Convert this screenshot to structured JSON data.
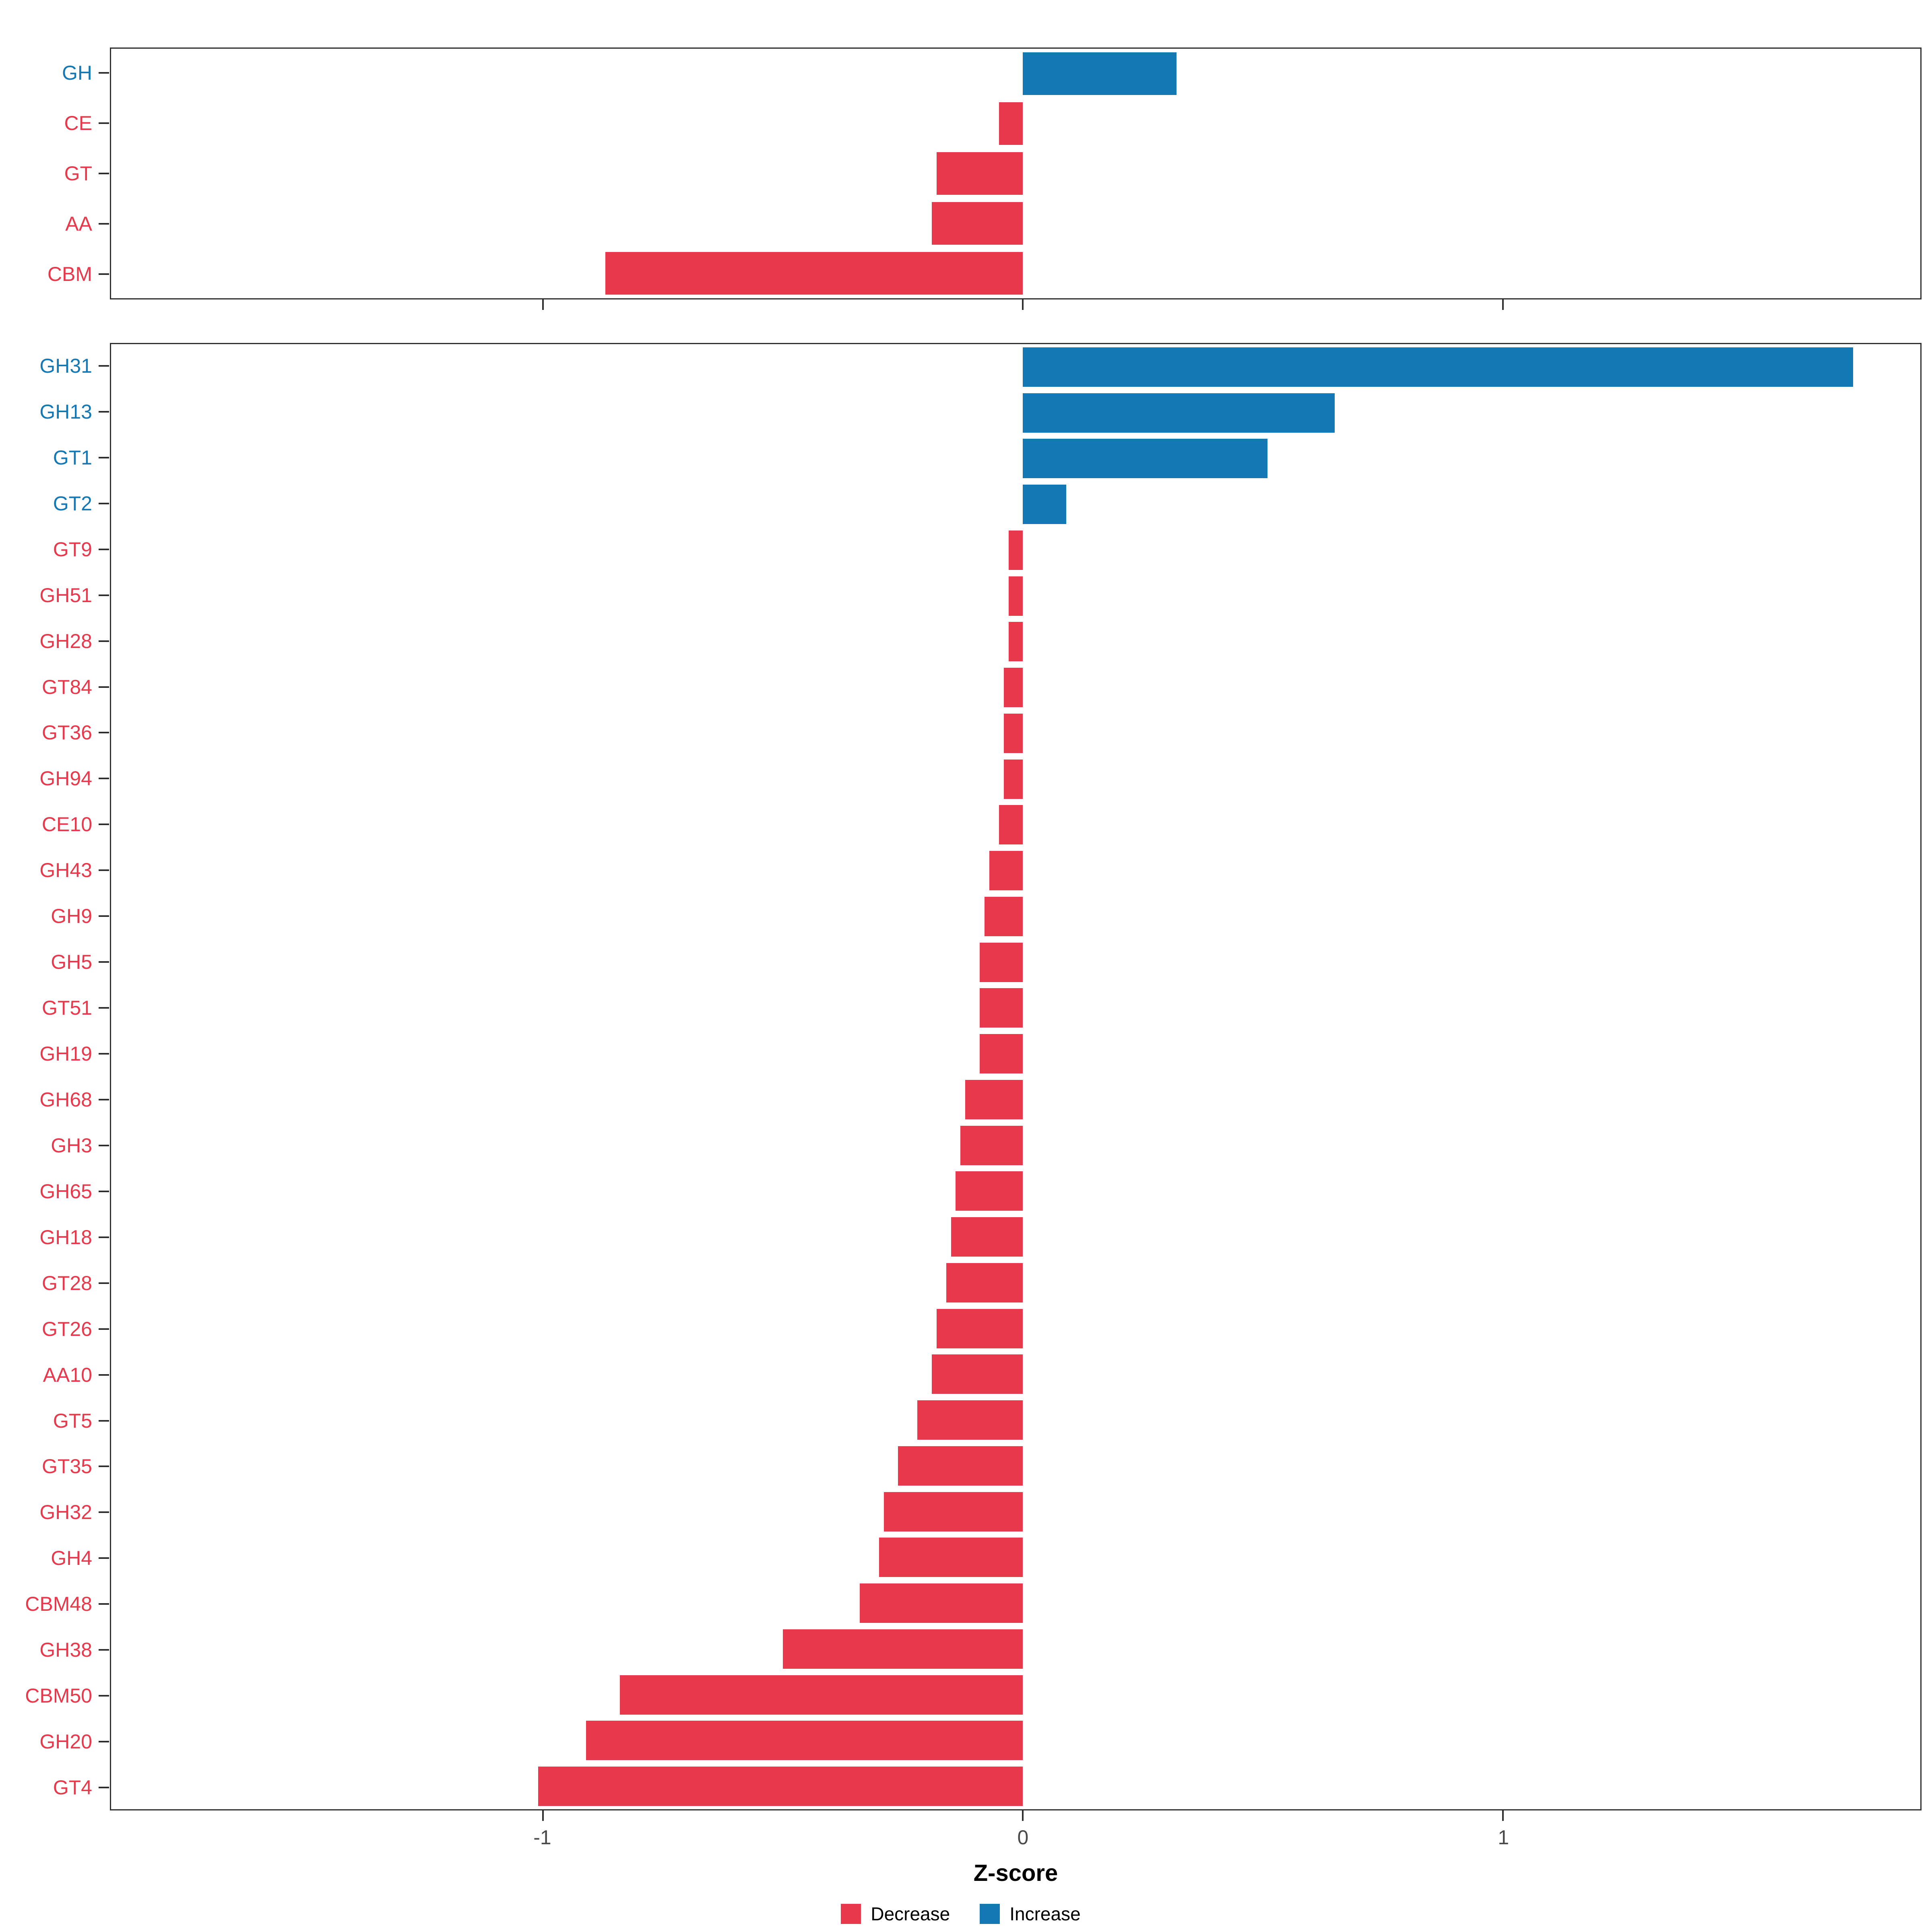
{
  "axis": {
    "xlabel": "Z-score",
    "ticks": [
      -1,
      0,
      1
    ],
    "xmin": -1.9,
    "xmax": 1.87
  },
  "colors": {
    "decrease": "#E8384B",
    "increase": "#1478B4",
    "axis_text": "#4a4a4a",
    "panel_border": "#2e2e2e"
  },
  "legend": [
    {
      "label": "Decrease",
      "color": "#E8384B"
    },
    {
      "label": "Increase",
      "color": "#1478B4"
    }
  ],
  "chart_data": [
    {
      "type": "bar",
      "orientation": "horizontal",
      "panel": "top",
      "categories": [
        "GH",
        "CE",
        "GT",
        "AA",
        "CBM"
      ],
      "values": [
        0.32,
        -0.05,
        -0.18,
        -0.19,
        -0.87
      ],
      "xlabel": "Z-score",
      "xlim": [
        -1.9,
        1.87
      ],
      "grid": false,
      "legend_position": "bottom"
    },
    {
      "type": "bar",
      "orientation": "horizontal",
      "panel": "bottom",
      "categories": [
        "GH31",
        "GH13",
        "GT1",
        "GT2",
        "GT9",
        "GH51",
        "GH28",
        "GT84",
        "GT36",
        "GH94",
        "CE10",
        "GH43",
        "GH9",
        "GH5",
        "GT51",
        "GH19",
        "GH68",
        "GH3",
        "GH65",
        "GH18",
        "GT28",
        "GT26",
        "AA10",
        "GT5",
        "GT35",
        "GH32",
        "GH4",
        "CBM48",
        "GH38",
        "CBM50",
        "GH20",
        "GT4"
      ],
      "values": [
        1.73,
        0.65,
        0.51,
        0.09,
        -0.03,
        -0.03,
        -0.03,
        -0.04,
        -0.04,
        -0.04,
        -0.05,
        -0.07,
        -0.08,
        -0.09,
        -0.09,
        -0.09,
        -0.12,
        -0.13,
        -0.14,
        -0.15,
        -0.16,
        -0.18,
        -0.19,
        -0.22,
        -0.26,
        -0.29,
        -0.3,
        -0.34,
        -0.5,
        -0.84,
        -0.91,
        -1.01
      ],
      "xlabel": "Z-score",
      "xlim": [
        -1.9,
        1.87
      ],
      "grid": false,
      "legend_position": "bottom"
    }
  ]
}
